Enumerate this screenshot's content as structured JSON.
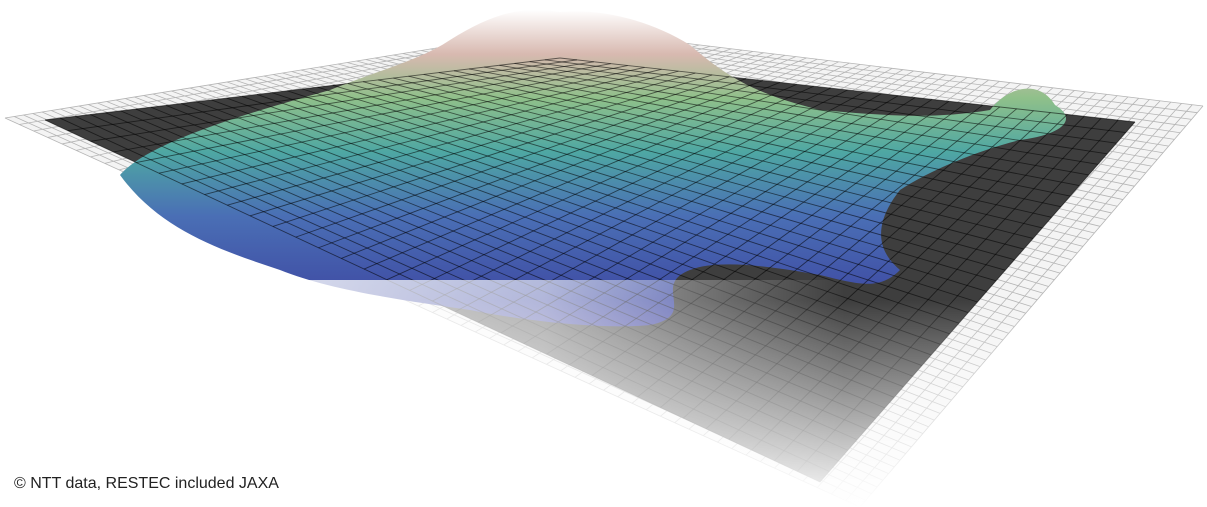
{
  "credit": "© NTT data, RESTEC included JAXA"
}
